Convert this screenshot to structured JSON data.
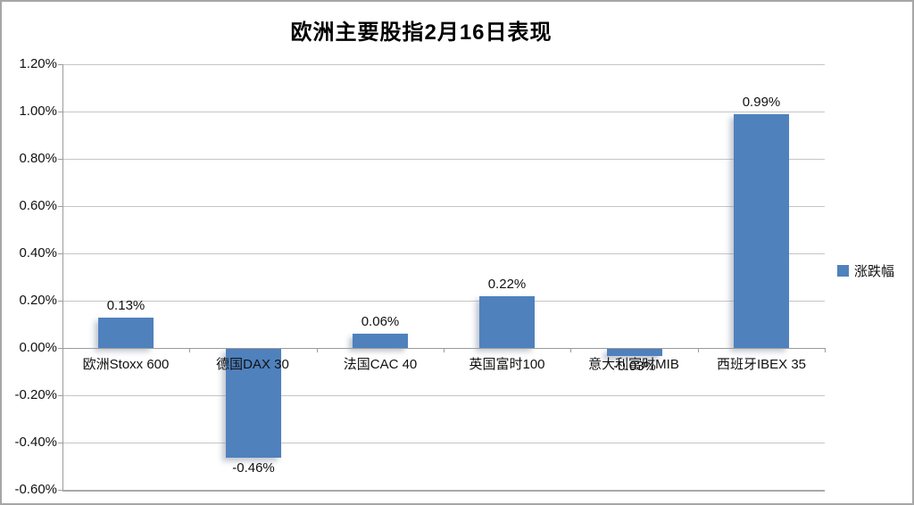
{
  "title": "欧洲主要股指2月16日表现",
  "legend": {
    "label": "涨跌幅",
    "marker_color": "#4F81BD"
  },
  "colors": {
    "bar": "#4F81BD",
    "gridline": "#c6c6c6",
    "axis": "#9b9b9b",
    "outer_border": "#a6a6a6",
    "background": "#ffffff"
  },
  "chart_data": {
    "type": "bar",
    "title": "欧洲主要股指2月16日表现",
    "categories": [
      "欧洲Stoxx 600",
      "德国DAX 30",
      "法国CAC 40",
      "英国富时100",
      "意大利富时MIB",
      "西班牙IBEX 35"
    ],
    "series": [
      {
        "name": "涨跌幅",
        "values": [
          0.13,
          -0.46,
          0.06,
          0.22,
          -0.03,
          0.99
        ],
        "value_labels": [
          "0.13%",
          "-0.46%",
          "0.06%",
          "0.22%",
          "-0.03%",
          "0.99%"
        ],
        "color": "#4F81BD"
      }
    ],
    "xlabel": "",
    "ylabel": "",
    "ylim": [
      -0.6,
      1.2
    ],
    "ytick_step": 0.2,
    "ytick_labels": [
      "1.20%",
      "1.00%",
      "0.80%",
      "0.60%",
      "0.40%",
      "0.20%",
      "0.00%",
      "-0.20%",
      "-0.40%",
      "-0.60%"
    ],
    "grid": true,
    "legend_position": "right"
  }
}
